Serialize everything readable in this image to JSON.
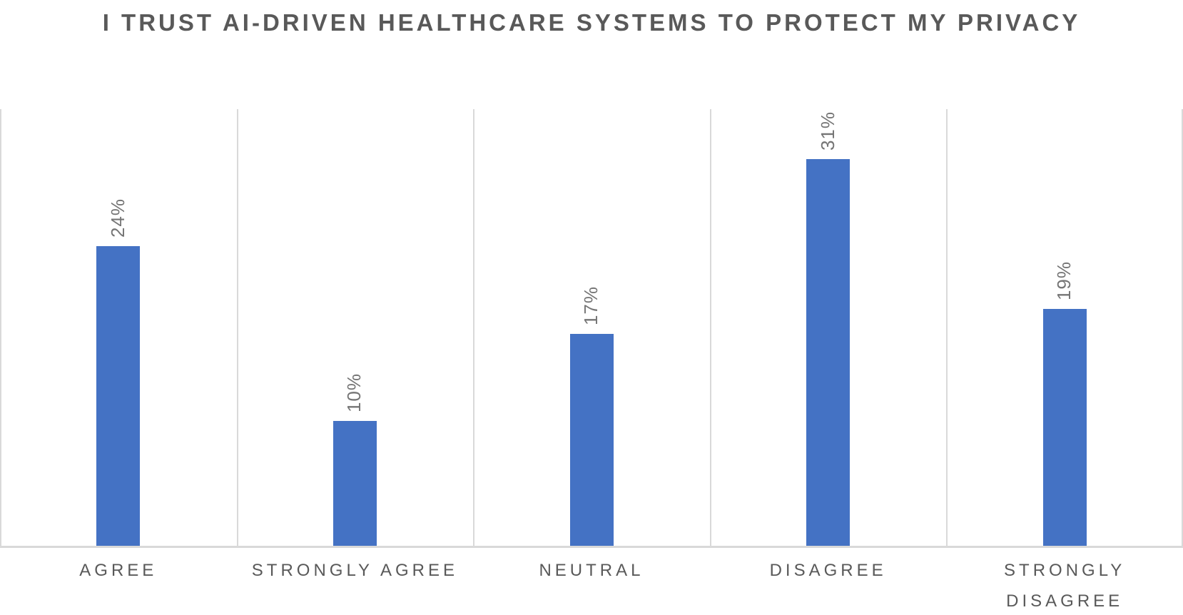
{
  "chart_data": {
    "type": "bar",
    "title": "I TRUST AI-DRIVEN HEALTHCARE SYSTEMS TO PROTECT MY PRIVACY",
    "categories": [
      "AGREE",
      "STRONGLY AGREE",
      "NEUTRAL",
      "DISAGREE",
      "STRONGLY DISAGREE"
    ],
    "values": [
      24,
      10,
      17,
      31,
      19
    ],
    "value_labels": [
      "24%",
      "10%",
      "17%",
      "31%",
      "19%"
    ],
    "value_label_rotation_deg": -90,
    "xlabel": "",
    "ylabel": "",
    "ylim": [
      0,
      35
    ],
    "y_axis_ticks_visible": false,
    "grid": "vertical category separators only",
    "legend": "none",
    "bar_color": "#4472c4",
    "gridline_color": "#d9d9d9",
    "axis_line_color": "#d9d9d9",
    "title_color": "#595959",
    "category_label_color": "#595959",
    "value_label_color": "#757575"
  }
}
